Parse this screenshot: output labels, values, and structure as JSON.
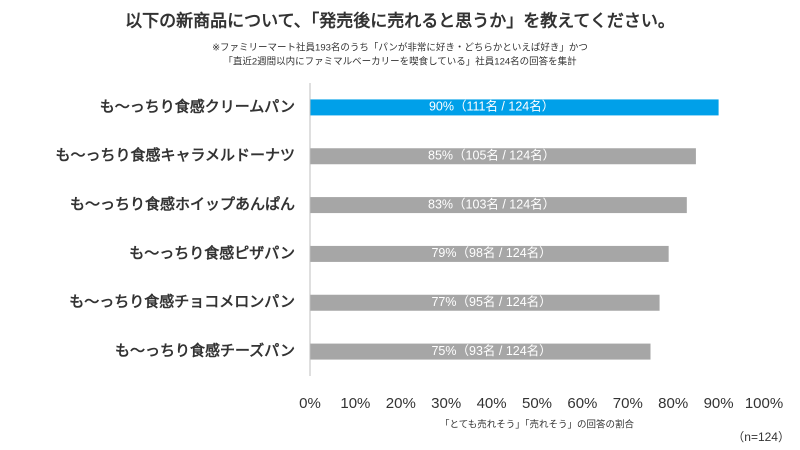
{
  "chart_data": {
    "type": "bar",
    "orientation": "horizontal",
    "title": "以下の新商品について、「発売後に売れると思うか」を教えてください。",
    "subtitle": [
      "※ファミリーマート社員193名のうち「パンが非常に好き・どちらかといえば好き」かつ",
      "「直近2週間以内にファミマルベーカリーを喫食している」社員124名の回答を集計"
    ],
    "categories": [
      "も～っちり食感クリームパン",
      "も～っちり食感キャラメルドーナツ",
      "も～っちり食感ホイップあんぱん",
      "も～っちり食感ピザパン",
      "も～っちり食感チョコメロンパン",
      "も～っちり食感チーズパン"
    ],
    "values": [
      90,
      85,
      83,
      79,
      77,
      75
    ],
    "value_labels": [
      "90%（111名 / 124名）",
      "85%（105名 / 124名）",
      "83%（103名 / 124名）",
      "79%（98名 / 124名）",
      "77%（95名 / 124名）",
      "75%（93名 / 124名）"
    ],
    "colors": [
      "#00a0e9",
      "#a6a6a6",
      "#a6a6a6",
      "#a6a6a6",
      "#a6a6a6",
      "#a6a6a6"
    ],
    "xlim": [
      0,
      100
    ],
    "xticks": [
      {
        "value": 0,
        "label": "0%"
      },
      {
        "value": 10,
        "label": "10%"
      },
      {
        "value": 20,
        "label": "20%"
      },
      {
        "value": 30,
        "label": "30%"
      },
      {
        "value": 40,
        "label": "40%"
      },
      {
        "value": 50,
        "label": "50%"
      },
      {
        "value": 60,
        "label": "60%"
      },
      {
        "value": 70,
        "label": "70%"
      },
      {
        "value": 80,
        "label": "80%"
      },
      {
        "value": 90,
        "label": "90%"
      },
      {
        "value": 100,
        "label": "100%"
      }
    ],
    "xlabel": "「とても売れそう」「売れそう」の回答の割合",
    "note": "（n=124）"
  }
}
